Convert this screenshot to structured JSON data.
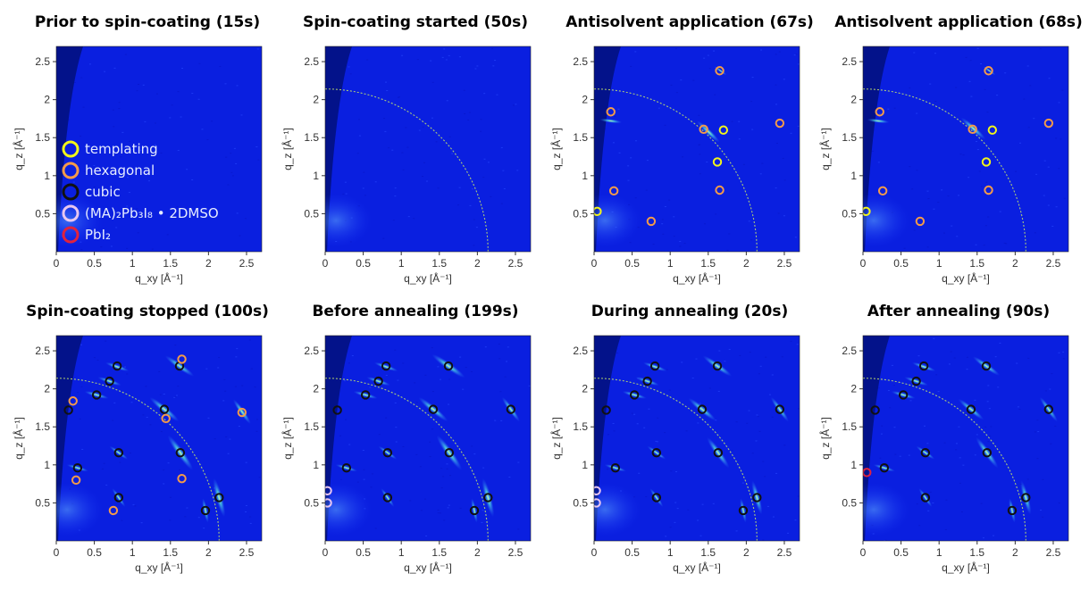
{
  "figure": {
    "colors": {
      "background": "#0a1fe0",
      "shadow": "#03128a",
      "ring": "#c7e86a",
      "templating": "#f2f51a",
      "hexagonal": "#f39a4a",
      "cubic": "#111111",
      "solvate": "#e8c6f0",
      "pbi2": "#e0223f"
    },
    "legend": {
      "placement": "lower-left of first panel",
      "entries": [
        {
          "key": "templating",
          "label": "templating",
          "color": "#f2f51a"
        },
        {
          "key": "hexagonal",
          "label": "hexagonal",
          "color": "#f39a4a"
        },
        {
          "key": "cubic",
          "label": "cubic",
          "color": "#111111"
        },
        {
          "key": "solvate",
          "label": "(MA)₂Pb₃I₈ • 2DMSO",
          "color": "#e8c6f0"
        },
        {
          "key": "pbi2",
          "label": "PbI₂",
          "color": "#e0223f"
        }
      ]
    }
  },
  "chart_data": [
    {
      "type": "scatter",
      "title": "Prior to spin-coating (15s)",
      "xlabel": "q_xy [Å⁻¹]",
      "ylabel": "q_z [Å⁻¹]",
      "xlim": [
        0,
        2.7
      ],
      "ylim": [
        0,
        2.7
      ],
      "ring": false,
      "streaks": [],
      "series": []
    },
    {
      "type": "scatter",
      "title": "Spin-coating started (50s)",
      "xlabel": "q_xy [Å⁻¹]",
      "ylabel": "q_z [Å⁻¹]",
      "xlim": [
        0,
        2.7
      ],
      "ylim": [
        0,
        2.7
      ],
      "ring": true,
      "streaks": [],
      "series": []
    },
    {
      "type": "scatter",
      "title": "Antisolvent application (67s)",
      "xlabel": "q_xy [Å⁻¹]",
      "ylabel": "q_z [Å⁻¹]",
      "xlim": [
        0,
        2.7
      ],
      "ylim": [
        0,
        2.7
      ],
      "ring": true,
      "streaks": [
        [
          1.5,
          1.58,
          1.25
        ],
        [
          1.66,
          2.38,
          0.6
        ],
        [
          0.22,
          1.72,
          0.9
        ]
      ],
      "series": [
        {
          "name": "templating",
          "points": [
            [
              0.04,
              0.53
            ],
            [
              1.7,
              1.6
            ],
            [
              1.62,
              1.18
            ]
          ]
        },
        {
          "name": "hexagonal",
          "points": [
            [
              1.65,
              2.38
            ],
            [
              0.22,
              1.84
            ],
            [
              1.44,
              1.61
            ],
            [
              2.44,
              1.69
            ],
            [
              0.26,
              0.8
            ],
            [
              1.65,
              0.81
            ],
            [
              0.75,
              0.4
            ]
          ]
        }
      ]
    },
    {
      "type": "scatter",
      "title": "Antisolvent application (68s)",
      "xlabel": "q_xy [Å⁻¹]",
      "ylabel": "q_z [Å⁻¹]",
      "xlim": [
        0,
        2.7
      ],
      "ylim": [
        0,
        2.7
      ],
      "ring": true,
      "streaks": [
        [
          1.45,
          1.62,
          1.3
        ],
        [
          1.66,
          2.38,
          0.6
        ],
        [
          0.2,
          1.72,
          0.9
        ]
      ],
      "series": [
        {
          "name": "templating",
          "points": [
            [
              0.04,
              0.53
            ],
            [
              1.7,
              1.6
            ],
            [
              1.62,
              1.18
            ]
          ]
        },
        {
          "name": "hexagonal",
          "points": [
            [
              1.65,
              2.38
            ],
            [
              0.22,
              1.84
            ],
            [
              1.44,
              1.61
            ],
            [
              2.44,
              1.69
            ],
            [
              0.26,
              0.8
            ],
            [
              1.65,
              0.81
            ],
            [
              0.75,
              0.4
            ]
          ]
        }
      ]
    },
    {
      "type": "scatter",
      "title": "Spin-coating stopped (100s)",
      "xlabel": "q_xy [Å⁻¹]",
      "ylabel": "q_z [Å⁻¹]",
      "xlim": [
        0,
        2.7
      ],
      "ylim": [
        0,
        2.7
      ],
      "ring": true,
      "streaks": [
        [
          1.62,
          2.3,
          1.4
        ],
        [
          1.42,
          1.73,
          1.5
        ],
        [
          1.63,
          1.16,
          1.7
        ],
        [
          2.44,
          1.7,
          1.2
        ],
        [
          2.14,
          0.57,
          1.6
        ],
        [
          0.8,
          2.29,
          1.0
        ],
        [
          0.7,
          2.1,
          1.0
        ],
        [
          0.53,
          1.92,
          1.0
        ],
        [
          1.96,
          0.4,
          1.0
        ],
        [
          0.28,
          0.96,
          0.9
        ],
        [
          0.82,
          1.16,
          0.9
        ],
        [
          0.82,
          0.57,
          0.9
        ]
      ],
      "series": [
        {
          "name": "cubic",
          "points": [
            [
              0.8,
              2.3
            ],
            [
              1.62,
              2.3
            ],
            [
              0.7,
              2.1
            ],
            [
              0.53,
              1.92
            ],
            [
              0.16,
              1.72
            ],
            [
              1.42,
              1.73
            ],
            [
              0.28,
              0.96
            ],
            [
              0.82,
              1.16
            ],
            [
              1.63,
              1.16
            ],
            [
              0.82,
              0.57
            ],
            [
              2.14,
              0.57
            ],
            [
              1.96,
              0.4
            ]
          ]
        },
        {
          "name": "hexagonal",
          "points": [
            [
              1.65,
              2.39
            ],
            [
              0.22,
              1.84
            ],
            [
              1.44,
              1.61
            ],
            [
              2.44,
              1.69
            ],
            [
              0.26,
              0.8
            ],
            [
              1.65,
              0.82
            ],
            [
              0.75,
              0.4
            ]
          ]
        }
      ]
    },
    {
      "type": "scatter",
      "title": "Before annealing (199s)",
      "xlabel": "q_xy [Å⁻¹]",
      "ylabel": "q_z [Å⁻¹]",
      "xlim": [
        0,
        2.7
      ],
      "ylim": [
        0,
        2.7
      ],
      "ring": true,
      "streaks": [
        [
          1.62,
          2.3,
          1.6
        ],
        [
          1.42,
          1.73,
          1.5
        ],
        [
          1.63,
          1.16,
          1.7
        ],
        [
          2.44,
          1.73,
          1.2
        ],
        [
          2.14,
          0.57,
          1.6
        ],
        [
          0.8,
          2.29,
          1.0
        ],
        [
          0.7,
          2.1,
          1.0
        ],
        [
          0.53,
          1.92,
          1.0
        ],
        [
          1.96,
          0.4,
          1.0
        ],
        [
          0.28,
          0.96,
          0.9
        ],
        [
          0.82,
          1.16,
          0.9
        ],
        [
          0.82,
          0.57,
          0.9
        ]
      ],
      "series": [
        {
          "name": "cubic",
          "points": [
            [
              0.8,
              2.3
            ],
            [
              1.62,
              2.3
            ],
            [
              0.7,
              2.1
            ],
            [
              0.53,
              1.92
            ],
            [
              0.16,
              1.72
            ],
            [
              1.42,
              1.73
            ],
            [
              2.44,
              1.73
            ],
            [
              0.28,
              0.96
            ],
            [
              0.82,
              1.16
            ],
            [
              1.63,
              1.16
            ],
            [
              0.82,
              0.57
            ],
            [
              2.14,
              0.57
            ],
            [
              1.96,
              0.4
            ]
          ]
        },
        {
          "name": "(MA)2Pb3I8 • 2DMSO",
          "points": [
            [
              0.03,
              0.66
            ],
            [
              0.03,
              0.5
            ]
          ]
        }
      ]
    },
    {
      "type": "scatter",
      "title": "During annealing (20s)",
      "xlabel": "q_xy [Å⁻¹]",
      "ylabel": "q_z [Å⁻¹]",
      "xlim": [
        0,
        2.7
      ],
      "ylim": [
        0,
        2.7
      ],
      "ring": true,
      "streaks": [
        [
          1.62,
          2.3,
          1.4
        ],
        [
          1.42,
          1.73,
          1.4
        ],
        [
          1.63,
          1.16,
          1.5
        ],
        [
          2.44,
          1.73,
          1.2
        ],
        [
          2.14,
          0.57,
          1.4
        ],
        [
          0.8,
          2.29,
          1.0
        ],
        [
          0.7,
          2.1,
          1.0
        ],
        [
          0.53,
          1.92,
          1.0
        ],
        [
          1.96,
          0.4,
          1.0
        ],
        [
          0.28,
          0.96,
          0.9
        ],
        [
          0.82,
          1.16,
          0.9
        ],
        [
          0.82,
          0.57,
          0.9
        ]
      ],
      "series": [
        {
          "name": "cubic",
          "points": [
            [
              0.8,
              2.3
            ],
            [
              1.62,
              2.3
            ],
            [
              0.7,
              2.1
            ],
            [
              0.53,
              1.92
            ],
            [
              0.16,
              1.72
            ],
            [
              1.42,
              1.73
            ],
            [
              2.44,
              1.73
            ],
            [
              0.28,
              0.96
            ],
            [
              0.82,
              1.16
            ],
            [
              1.63,
              1.16
            ],
            [
              0.82,
              0.57
            ],
            [
              2.14,
              0.57
            ],
            [
              1.96,
              0.4
            ]
          ]
        },
        {
          "name": "(MA)2Pb3I8 • 2DMSO",
          "points": [
            [
              0.03,
              0.66
            ],
            [
              0.03,
              0.5
            ]
          ]
        }
      ]
    },
    {
      "type": "scatter",
      "title": "After annealing (90s)",
      "xlabel": "q_xy [Å⁻¹]",
      "ylabel": "q_z [Å⁻¹]",
      "xlim": [
        0,
        2.7
      ],
      "ylim": [
        0,
        2.7
      ],
      "ring": true,
      "streaks": [
        [
          1.62,
          2.3,
          1.3
        ],
        [
          1.42,
          1.73,
          1.3
        ],
        [
          1.63,
          1.16,
          1.5
        ],
        [
          2.44,
          1.73,
          1.2
        ],
        [
          2.14,
          0.57,
          1.4
        ],
        [
          0.8,
          2.29,
          1.0
        ],
        [
          0.7,
          2.1,
          1.0
        ],
        [
          0.53,
          1.92,
          1.0
        ],
        [
          1.96,
          0.4,
          1.0
        ],
        [
          0.28,
          0.96,
          0.9
        ],
        [
          0.82,
          1.16,
          0.9
        ],
        [
          0.82,
          0.57,
          0.9
        ]
      ],
      "series": [
        {
          "name": "cubic",
          "points": [
            [
              0.8,
              2.3
            ],
            [
              1.62,
              2.3
            ],
            [
              0.7,
              2.1
            ],
            [
              0.53,
              1.92
            ],
            [
              0.16,
              1.72
            ],
            [
              1.42,
              1.73
            ],
            [
              2.44,
              1.73
            ],
            [
              0.28,
              0.96
            ],
            [
              0.82,
              1.16
            ],
            [
              1.63,
              1.16
            ],
            [
              0.82,
              0.57
            ],
            [
              2.14,
              0.57
            ],
            [
              1.96,
              0.4
            ]
          ]
        },
        {
          "name": "PbI2",
          "points": [
            [
              0.05,
              0.9
            ]
          ]
        }
      ]
    }
  ]
}
